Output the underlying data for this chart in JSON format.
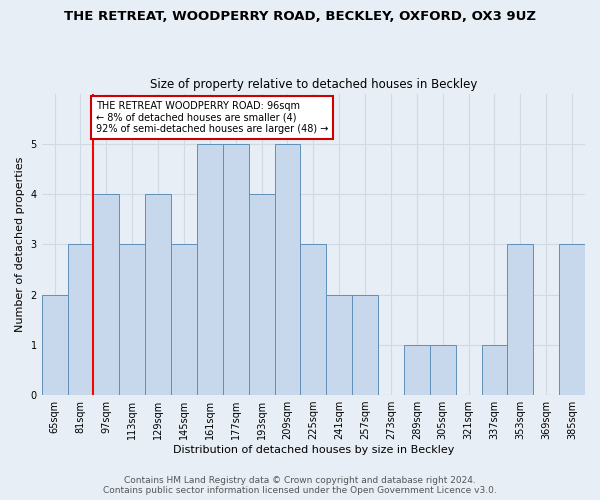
{
  "title": "THE RETREAT, WOODPERRY ROAD, BECKLEY, OXFORD, OX3 9UZ",
  "subtitle": "Size of property relative to detached houses in Beckley",
  "xlabel": "Distribution of detached houses by size in Beckley",
  "ylabel": "Number of detached properties",
  "categories": [
    "65sqm",
    "81sqm",
    "97sqm",
    "113sqm",
    "129sqm",
    "145sqm",
    "161sqm",
    "177sqm",
    "193sqm",
    "209sqm",
    "225sqm",
    "241sqm",
    "257sqm",
    "273sqm",
    "289sqm",
    "305sqm",
    "321sqm",
    "337sqm",
    "353sqm",
    "369sqm",
    "385sqm"
  ],
  "values": [
    2,
    3,
    4,
    3,
    4,
    3,
    5,
    5,
    4,
    5,
    3,
    2,
    2,
    0,
    1,
    1,
    0,
    1,
    3,
    0,
    3
  ],
  "bar_color": "#c8d8ec",
  "bar_edge_color": "#6090b8",
  "red_line_index": 1.5,
  "ylim": [
    0,
    6
  ],
  "yticks": [
    0,
    1,
    2,
    3,
    4,
    5,
    6
  ],
  "annotation_text": "THE RETREAT WOODPERRY ROAD: 96sqm\n← 8% of detached houses are smaller (4)\n92% of semi-detached houses are larger (48) →",
  "annotation_box_color": "#ffffff",
  "annotation_border_color": "#cc0000",
  "footer1": "Contains HM Land Registry data © Crown copyright and database right 2024.",
  "footer2": "Contains public sector information licensed under the Open Government Licence v3.0.",
  "background_color": "#e8eef5",
  "grid_color": "#d0dae4",
  "title_fontsize": 9.5,
  "subtitle_fontsize": 8.5,
  "xlabel_fontsize": 8,
  "ylabel_fontsize": 8,
  "tick_fontsize": 7,
  "annotation_fontsize": 7,
  "footer_fontsize": 6.5
}
